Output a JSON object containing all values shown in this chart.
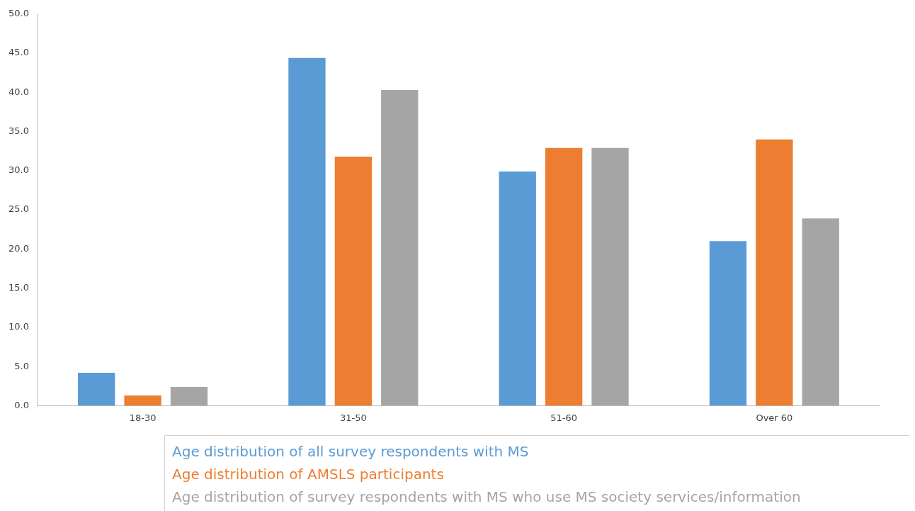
{
  "chart_data": {
    "type": "bar",
    "categories": [
      "18-30",
      "31-50",
      "51-60",
      "Over 60"
    ],
    "series": [
      {
        "name": "Age distribution of all survey respondents with MS",
        "color": "#5b9bd5",
        "values": [
          4.2,
          44.4,
          29.9,
          21.0
        ]
      },
      {
        "name": "Age distribution of AMSLS participants",
        "color": "#ed7d31",
        "values": [
          1.3,
          31.8,
          32.9,
          34.0
        ]
      },
      {
        "name": "Age distribution of survey respondents with MS who use MS society services/information",
        "color": "#a5a5a5",
        "values": [
          2.4,
          40.3,
          32.9,
          23.9
        ]
      }
    ],
    "ylim": [
      0,
      50
    ],
    "yticks": [
      {
        "value": 0,
        "label": "0.0"
      },
      {
        "value": 5,
        "label": "5.0"
      },
      {
        "value": 10,
        "label": "10.0"
      },
      {
        "value": 15,
        "label": "15.0"
      },
      {
        "value": 20,
        "label": "20.0"
      },
      {
        "value": 25,
        "label": "25.0"
      },
      {
        "value": 30,
        "label": "30.0"
      },
      {
        "value": 35,
        "label": "35.0"
      },
      {
        "value": 40,
        "label": "40.0"
      },
      {
        "value": 45,
        "label": "45.0"
      },
      {
        "value": 50,
        "label": "50.0"
      }
    ],
    "grid": false,
    "legend": "bottom"
  }
}
